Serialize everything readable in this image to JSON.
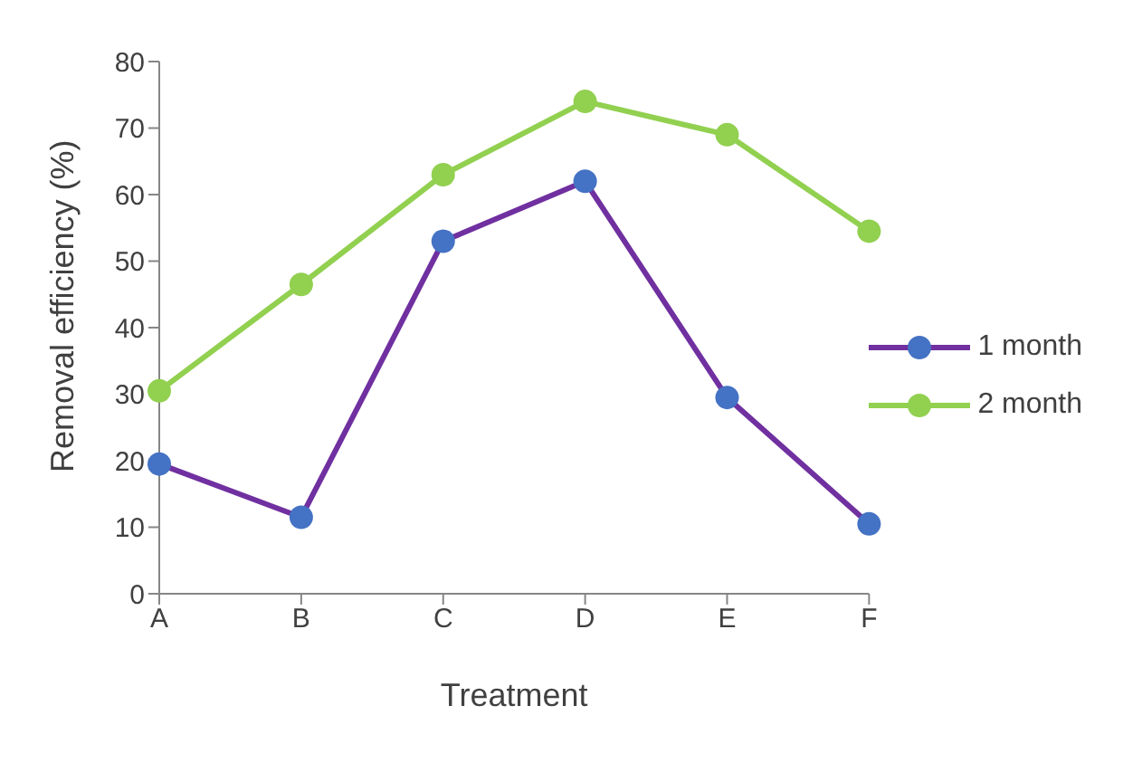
{
  "chart_data": {
    "type": "line",
    "xlabel": "Treatment",
    "ylabel": "Removal efficiency (%)",
    "categories": [
      "A",
      "B",
      "C",
      "D",
      "E",
      "F"
    ],
    "series": [
      {
        "name": "1 month",
        "color": "#7030a0",
        "values": [
          19.5,
          11.5,
          53,
          62,
          29.5,
          10.5
        ]
      },
      {
        "name": "2 month",
        "color": "#92d050",
        "values": [
          30.5,
          46.5,
          63,
          74,
          69,
          54.5
        ]
      }
    ],
    "ylim": [
      0,
      80
    ],
    "yticks": [
      0,
      10,
      20,
      30,
      40,
      50,
      60,
      70,
      80
    ],
    "grid": false,
    "legend": "right",
    "marker": "circle",
    "line_style": "solid"
  }
}
